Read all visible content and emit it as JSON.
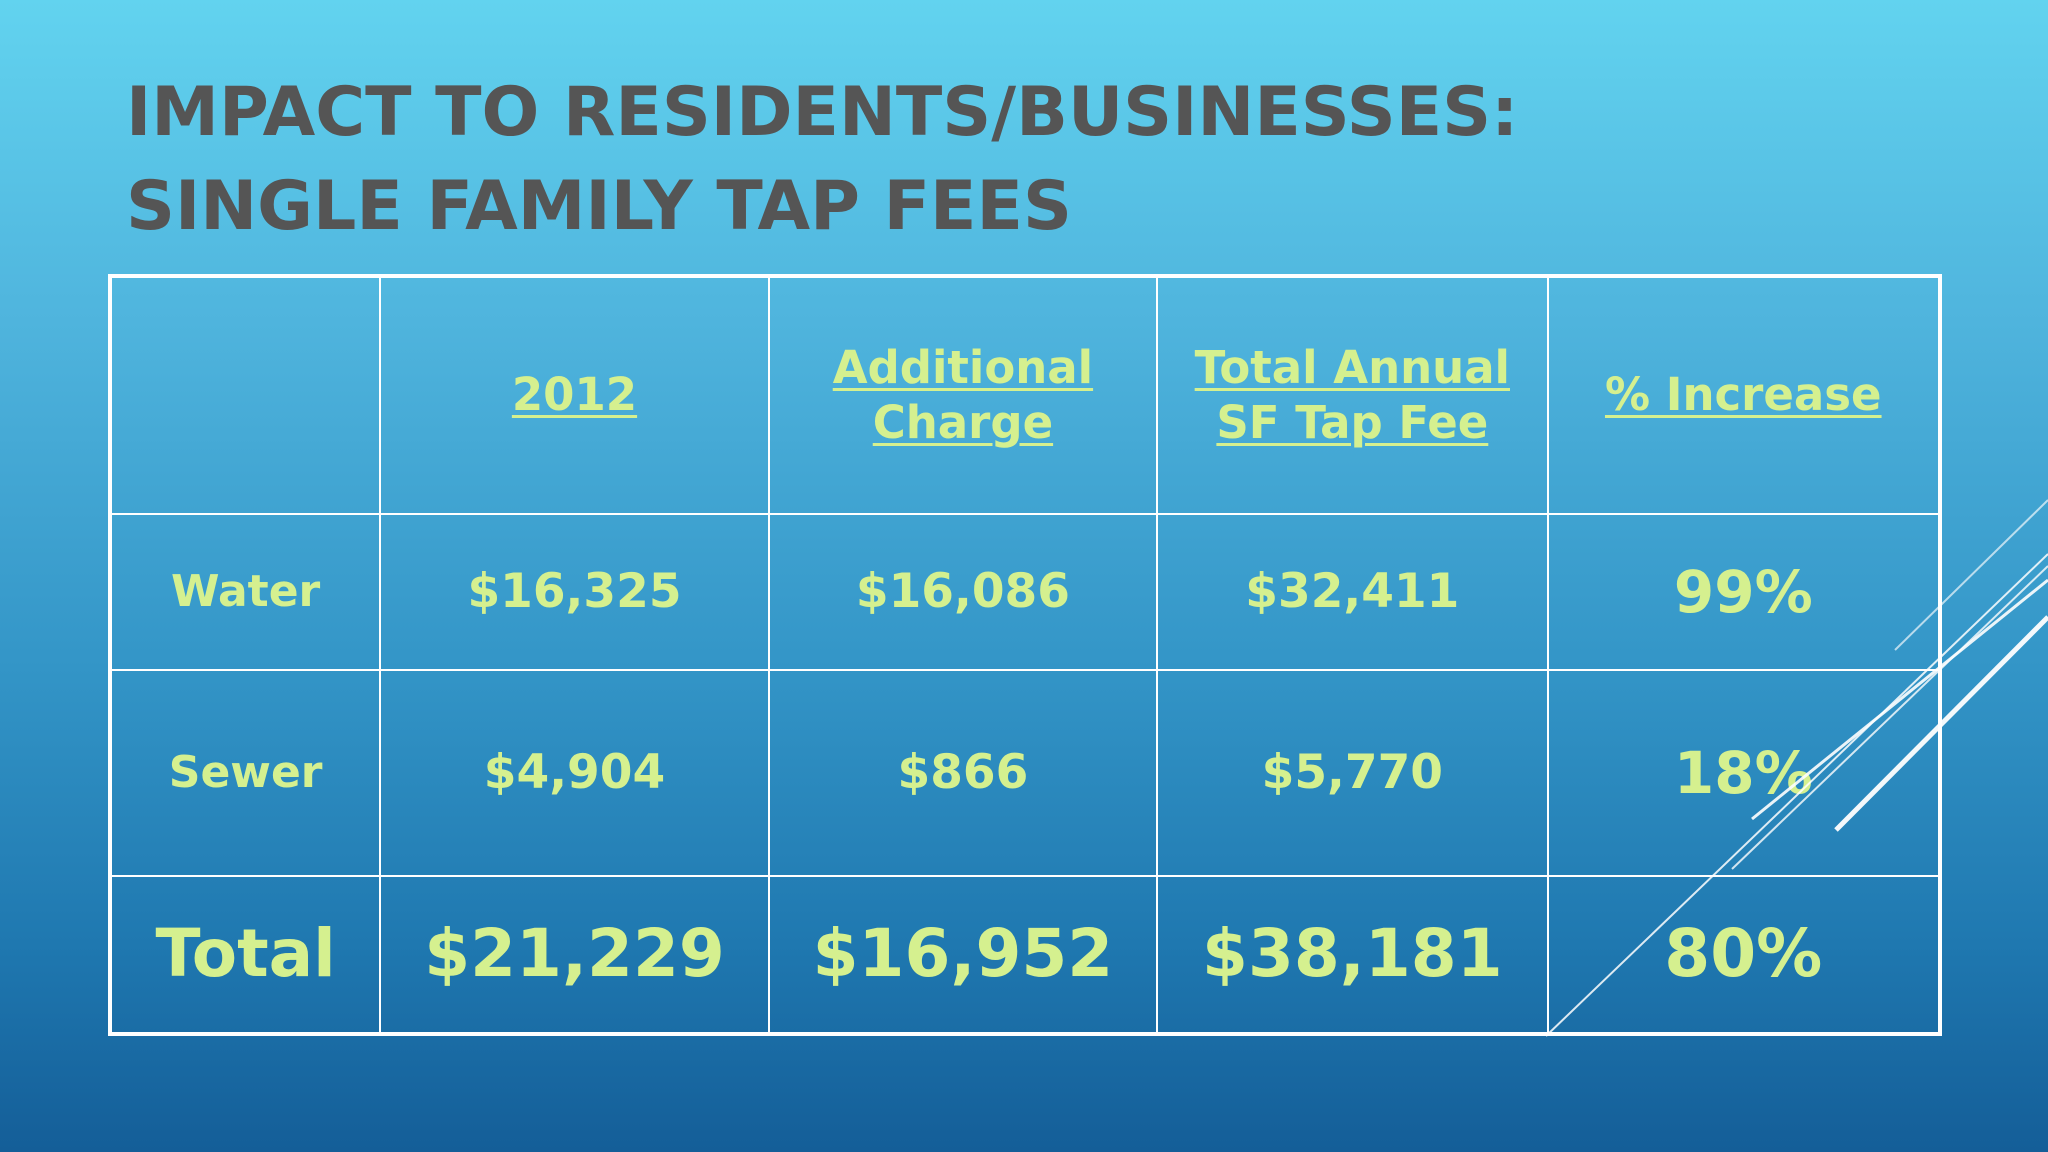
{
  "slide": {
    "title_line_1": "IMPACT TO RESIDENTS/BUSINESSES:",
    "title_line_2": "SINGLE FAMILY TAP FEES"
  },
  "table": {
    "headers": [
      "",
      "2012",
      "Additional Charge",
      "Total Annual SF Tap Fee",
      "% Increase"
    ],
    "rows": [
      {
        "label": "Water",
        "year_2012": "$16,325",
        "additional_charge": "$16,086",
        "total_annual_sf_tap_fee": "$32,411",
        "percent_increase": "99%"
      },
      {
        "label": "Sewer",
        "year_2012": "$4,904",
        "additional_charge": "$866",
        "total_annual_sf_tap_fee": "$5,770",
        "percent_increase": "18%"
      },
      {
        "label": "Total",
        "year_2012": "$21,229",
        "additional_charge": "$16,952",
        "total_annual_sf_tap_fee": "$38,181",
        "percent_increase": "80%"
      }
    ]
  },
  "colors": {
    "title": "#555555",
    "table_text": "#d5f08f",
    "table_border": "#ffffff",
    "background_top": "#62d3ef",
    "background_bottom": "#145e98"
  }
}
